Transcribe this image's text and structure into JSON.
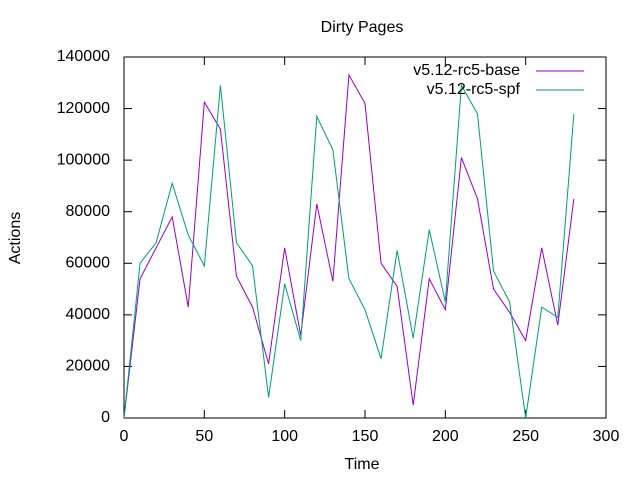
{
  "chart_data": {
    "type": "line",
    "title": "Dirty Pages",
    "x_label": "Time",
    "y_label": "Actions",
    "x": [
      0,
      10,
      20,
      30,
      40,
      50,
      60,
      70,
      80,
      90,
      100,
      110,
      120,
      130,
      140,
      150,
      160,
      170,
      180,
      190,
      200,
      210,
      220,
      230,
      240,
      250,
      260,
      270,
      280
    ],
    "series": [
      {
        "name": "v5.12-rc5-base",
        "color": "#9400d3",
        "values": [
          0,
          54000,
          66000,
          78000,
          43000,
          122500,
          112000,
          55000,
          43000,
          21000,
          66000,
          32000,
          83000,
          53000,
          133000,
          122000,
          60000,
          51000,
          5000,
          54000,
          42000,
          101000,
          85000,
          50000,
          41000,
          30000,
          66000,
          36000,
          85000
        ]
      },
      {
        "name": "v5.12-rc5-spf",
        "color": "#009e73",
        "values": [
          0,
          60000,
          68000,
          91000,
          71000,
          59000,
          129000,
          68000,
          59000,
          8000,
          52000,
          30000,
          117000,
          104000,
          54000,
          42000,
          23000,
          65000,
          31000,
          73000,
          45000,
          129000,
          118000,
          57000,
          45000,
          0,
          43000,
          39000,
          118000
        ]
      }
    ],
    "xlim": [
      0,
      300
    ],
    "xticks": [
      0,
      50,
      100,
      150,
      200,
      250,
      300
    ],
    "ylim": [
      0,
      140000
    ],
    "yticks": [
      0,
      20000,
      40000,
      60000,
      80000,
      100000,
      120000,
      140000
    ],
    "legend": "top-right",
    "grid": false
  }
}
